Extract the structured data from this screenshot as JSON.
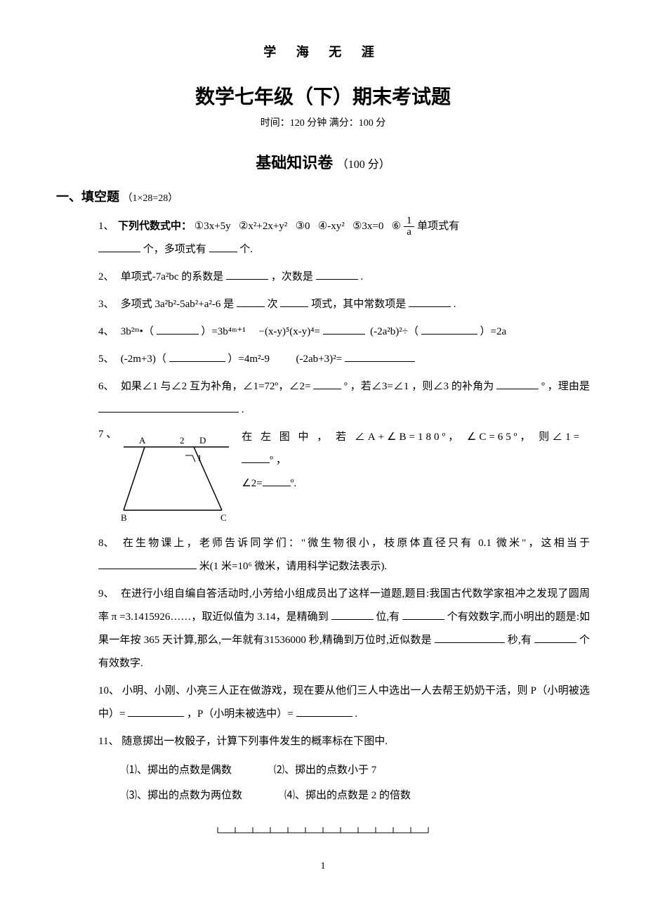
{
  "motto": "学 海 无  涯",
  "title": "数学七年级（下）期末考试题",
  "subtitle": "时间：120 分钟   满分：100 分",
  "section": {
    "name": "基础知识卷",
    "points": "（100 分）"
  },
  "part1": {
    "label": "一、填空题",
    "points": "（1×28=28）"
  },
  "q1": {
    "num": "1、",
    "lead": "下列代数式中：",
    "items": [
      "①3x+5y",
      "②x²+2x+y²",
      "③0",
      "④-xy²",
      "⑤3x=0",
      "⑥"
    ],
    "frac_top": "1",
    "frac_bot": "a",
    "tail1": " 单项式有",
    "tail2": "个，多项式有",
    "tail3": "个."
  },
  "q2": {
    "num": "2、",
    "text1": "单项式-7a²bc 的系数是",
    "text2": "，次数是",
    "text3": "."
  },
  "q3": {
    "num": "3、",
    "t1": "多项式 3a²b²-5ab²+a²-6 是",
    "t2": "次",
    "t3": "项式，其中常数项是",
    "t4": "."
  },
  "q4": {
    "num": "4、",
    "a": "3b²ᵐ•（",
    "b": "）=3b⁴ᵐ⁺¹",
    "c": "−(x-y)⁵(x-y)⁴=",
    "d": "(-2a²b)²÷（",
    "e": "）=2a"
  },
  "q5": {
    "num": "5、",
    "a": "(-2m+3)（",
    "b": "）=4m²-9",
    "c": "(-2ab+3)²="
  },
  "q6": {
    "num": "6、",
    "a": "如果∠1 与∠2 互为补角，∠1=72º，∠2=",
    "b": "º ，若∠3=∠1 ，则∠3 的补角为",
    "c": "º ，理由是",
    "d": "."
  },
  "q7": {
    "num": "7 、",
    "line1": "在 左 图 中 ， 若 ∠A+∠B=180º， ∠C=65º， 则∠1=",
    "deg": "º，",
    "line2": "∠2=",
    "deg2": "º.",
    "labels": {
      "A": "A",
      "B": "B",
      "C": "C",
      "D": "D",
      "one": "1",
      "two": "2"
    }
  },
  "q8": {
    "num": "8、",
    "a": "在生物课上，老师告诉同学们：\"微生物很小，枝原体直径只有 0.1 微米\"，这相当于",
    "b": "米(1 米=10⁶ 微米，请用科学记数法表示)."
  },
  "q9": {
    "num": "9、",
    "a": "在进行小组自编自答活动时,小芳给小组成员出了这样一道题,题目:我国古代数学家祖冲之发现了圆周率 π =3.1415926……，取近似值为 3.14，是精确到",
    "b": "位,有",
    "c": "个有效数字,而小明出的题是:如果一年按 365 天计算,那么,一年就有31536000 秒,精确到万位时,近似数是",
    "d": "秒,有",
    "e": "个有效数字."
  },
  "q10": {
    "num": "10、",
    "a": "小明、小刚、小亮三人正在做游戏，现在要从他们三人中选出一人去帮王奶奶干活，则 P（小明被选中）=",
    "b": "，P（小明未被选中）=",
    "c": "."
  },
  "q11": {
    "num": "11、",
    "a": "随意掷出一枚骰子，计算下列事件发生的概率标在下图中.",
    "s1": "⑴、掷出的点数是偶数",
    "s2": "⑵、掷出的点数小于 7",
    "s3": "⑶、掷出的点数为两位数",
    "s4": "⑷、掷出的点数是 2 的倍数"
  },
  "pageNumber": "1",
  "numberline": {
    "ticks": 12
  }
}
